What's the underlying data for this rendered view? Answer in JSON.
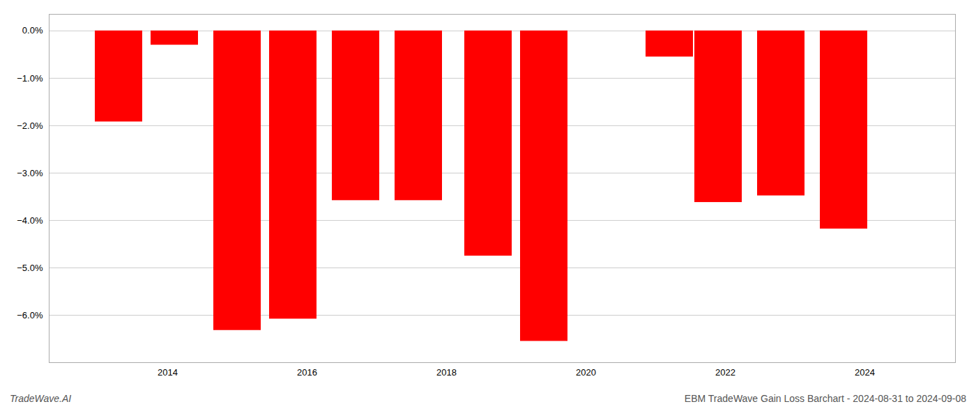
{
  "chart_data": {
    "type": "bar",
    "x": [
      2013.3,
      2014.1,
      2015.0,
      2015.8,
      2016.7,
      2017.6,
      2018.6,
      2019.4,
      2021.2,
      2021.9,
      2022.8,
      2023.7
    ],
    "values": [
      -1.92,
      -0.3,
      -6.32,
      -6.08,
      -3.58,
      -3.58,
      -4.75,
      -6.55,
      -0.55,
      -3.62,
      -3.48,
      -4.18
    ],
    "color": "#ff0000",
    "xlim": [
      2012.3,
      2025.3
    ],
    "xticks": [
      2014,
      2016,
      2018,
      2020,
      2022,
      2024
    ],
    "ylim": [
      -7.0,
      0.35
    ],
    "yticks": [
      {
        "value": 0.0,
        "label": "0.0%"
      },
      {
        "value": -1.0,
        "label": "−1.0%"
      },
      {
        "value": -2.0,
        "label": "−2.0%"
      },
      {
        "value": -3.0,
        "label": "−3.0%"
      },
      {
        "value": -4.0,
        "label": "−4.0%"
      },
      {
        "value": -5.0,
        "label": "−5.0%"
      },
      {
        "value": -6.0,
        "label": "−6.0%"
      }
    ],
    "grid": "y",
    "annotations": [
      "TradeWave.AI",
      "EBM TradeWave Gain Loss Barchart - 2024-08-31 to 2024-09-08"
    ]
  }
}
